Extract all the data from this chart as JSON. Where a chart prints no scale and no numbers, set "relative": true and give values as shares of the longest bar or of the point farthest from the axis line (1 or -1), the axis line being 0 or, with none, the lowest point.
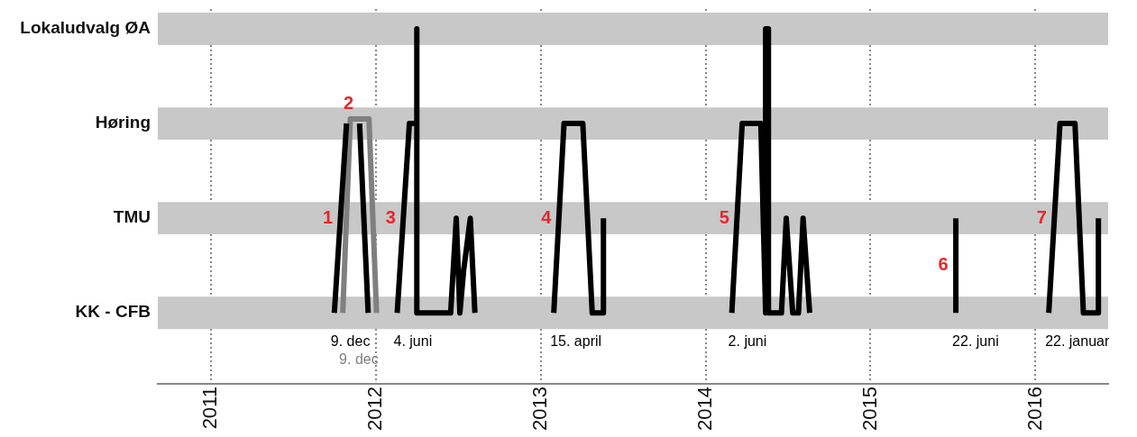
{
  "chart_data": {
    "type": "line",
    "relative": true,
    "xlim": [
      2010.68,
      2016.44
    ],
    "xticks": [
      2011,
      2012,
      2013,
      2014,
      2015,
      2016
    ],
    "grid": "x",
    "legend": false,
    "marker": "none",
    "line_style": "solid",
    "bands": [
      {
        "axis": "y",
        "from": -0.057,
        "to": 0.057,
        "color": "#c8c8c8",
        "label": "KK - CFB"
      },
      {
        "axis": "y",
        "from": 0.277,
        "to": 0.39,
        "color": "#c8c8c8",
        "label": "TMU"
      },
      {
        "axis": "y",
        "from": 0.61,
        "to": 0.723,
        "color": "#c8c8c8",
        "label": "Høring"
      },
      {
        "axis": "y",
        "from": 0.943,
        "to": 1.057,
        "color": "#c8c8c8",
        "label": "Lokaludvalg ØA"
      }
    ],
    "series": [
      {
        "name": "1",
        "color": "#000000",
        "x": [
          2011.75,
          2011.824,
          2011.86,
          2011.903,
          2011.955
        ],
        "values": [
          0,
          0.667,
          null,
          0.667,
          0
        ]
      },
      {
        "name": "2",
        "color": "#808080",
        "x": [
          2011.801,
          2011.847,
          2011.96,
          2012.006
        ],
        "values": [
          0,
          0.683,
          0.683,
          0
        ]
      },
      {
        "name": "3",
        "color": "#000000",
        "x": [
          2012.131,
          2012.205,
          2012.25,
          2012.25,
          2012.25,
          2012.455,
          2012.489,
          2012.511,
          2012.534,
          2012.574,
          2012.602
        ],
        "values": [
          0,
          0.667,
          0.667,
          1,
          0,
          0,
          0.333,
          0,
          0.15,
          0.333,
          0
        ]
      },
      {
        "name": "4",
        "color": "#000000",
        "x": [
          2013.08,
          2013.142,
          2013.256,
          2013.313,
          2013.381,
          2013.381
        ],
        "values": [
          0,
          0.667,
          0.667,
          0,
          0,
          0.333
        ]
      },
      {
        "name": "5",
        "color": "#000000",
        "x": [
          2014.159,
          2014.222,
          2014.335,
          2014.364,
          2014.364,
          2014.381,
          2014.381,
          2014.46,
          2014.489,
          2014.528,
          2014.563,
          2014.591,
          2014.631
        ],
        "values": [
          0,
          0.667,
          0.667,
          0,
          1,
          1,
          0,
          0,
          0.333,
          0,
          0,
          0.333,
          0
        ]
      },
      {
        "name": "6",
        "color": "#000000",
        "x": [
          2015.517,
          2015.517
        ],
        "values": [
          0,
          0.333
        ]
      },
      {
        "name": "7",
        "color": "#000000",
        "x": [
          2016.08,
          2016.148,
          2016.239,
          2016.29,
          2016.381,
          2016.381
        ],
        "values": [
          0,
          0.667,
          0.667,
          0,
          0,
          0.333
        ]
      }
    ],
    "annotations": [
      {
        "text": "9. dec",
        "x": 2011.75,
        "y": 0
      },
      {
        "text": "9. dec",
        "x": 2011.801,
        "y": 0
      },
      {
        "text": "4. juni",
        "x": 2012.131,
        "y": 0
      },
      {
        "text": "15. april",
        "x": 2013.08,
        "y": 0
      },
      {
        "text": "2. juni",
        "x": 2014.159,
        "y": 0
      },
      {
        "text": "22. juni",
        "x": 2015.517,
        "y": 0
      },
      {
        "text": "22. januar",
        "x": 2016.08,
        "y": 0
      }
    ]
  }
}
